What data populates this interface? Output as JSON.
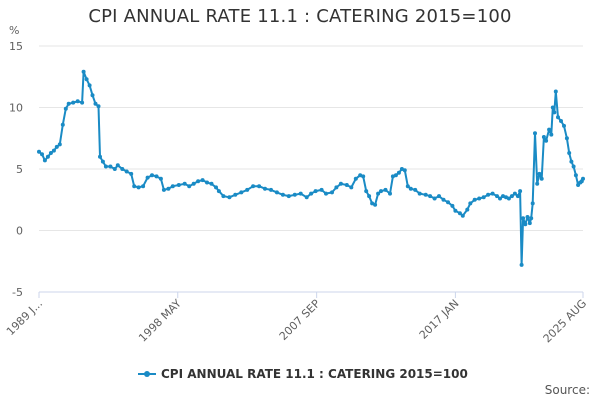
{
  "chart_data": {
    "type": "line",
    "title": "CPI ANNUAL RATE 11.1 : CATERING 2015=100",
    "ylabel": "%",
    "xlabel": "",
    "ylim": [
      -5,
      15
    ],
    "yticks": [
      -5,
      0,
      5,
      10,
      15
    ],
    "x_range": [
      1989.0,
      2025.58
    ],
    "xticks": [
      {
        "label": "1989 JAN",
        "display": "1989 J...",
        "x": 1989.0
      },
      {
        "label": "1998 MAY",
        "display": "1998 MAY",
        "x": 1998.33
      },
      {
        "label": "2007 SEP",
        "display": "2007 SEP",
        "x": 2007.67
      },
      {
        "label": "2017 JAN",
        "display": "2017 JAN",
        "x": 2017.0
      },
      {
        "label": "2025 AUG",
        "display": "2025 AUG",
        "x": 2025.58
      }
    ],
    "series": [
      {
        "name": "CPI ANNUAL RATE 11.1 : CATERING 2015=100",
        "color": "#1a8bc5",
        "points": [
          [
            1989.0,
            6.4
          ],
          [
            1989.2,
            6.2
          ],
          [
            1989.4,
            5.7
          ],
          [
            1989.6,
            6.0
          ],
          [
            1989.8,
            6.3
          ],
          [
            1990.0,
            6.5
          ],
          [
            1990.2,
            6.8
          ],
          [
            1990.4,
            7.0
          ],
          [
            1990.6,
            8.6
          ],
          [
            1990.8,
            9.9
          ],
          [
            1991.0,
            10.3
          ],
          [
            1991.3,
            10.4
          ],
          [
            1991.6,
            10.5
          ],
          [
            1991.9,
            10.4
          ],
          [
            1992.0,
            12.9
          ],
          [
            1992.2,
            12.3
          ],
          [
            1992.4,
            11.8
          ],
          [
            1992.6,
            11.0
          ],
          [
            1992.8,
            10.3
          ],
          [
            1993.0,
            10.1
          ],
          [
            1993.1,
            6.0
          ],
          [
            1993.3,
            5.6
          ],
          [
            1993.5,
            5.2
          ],
          [
            1993.8,
            5.2
          ],
          [
            1994.1,
            5.0
          ],
          [
            1994.3,
            5.3
          ],
          [
            1994.6,
            5.0
          ],
          [
            1994.9,
            4.8
          ],
          [
            1995.2,
            4.6
          ],
          [
            1995.4,
            3.6
          ],
          [
            1995.7,
            3.5
          ],
          [
            1996.0,
            3.6
          ],
          [
            1996.3,
            4.3
          ],
          [
            1996.6,
            4.5
          ],
          [
            1996.9,
            4.4
          ],
          [
            1997.2,
            4.2
          ],
          [
            1997.4,
            3.3
          ],
          [
            1997.7,
            3.4
          ],
          [
            1998.0,
            3.6
          ],
          [
            1998.4,
            3.7
          ],
          [
            1998.8,
            3.8
          ],
          [
            1999.1,
            3.6
          ],
          [
            1999.4,
            3.8
          ],
          [
            1999.7,
            4.0
          ],
          [
            2000.0,
            4.1
          ],
          [
            2000.3,
            3.9
          ],
          [
            2000.6,
            3.8
          ],
          [
            2000.9,
            3.5
          ],
          [
            2001.1,
            3.2
          ],
          [
            2001.4,
            2.8
          ],
          [
            2001.8,
            2.7
          ],
          [
            2002.2,
            2.9
          ],
          [
            2002.6,
            3.1
          ],
          [
            2003.0,
            3.3
          ],
          [
            2003.4,
            3.6
          ],
          [
            2003.8,
            3.6
          ],
          [
            2004.2,
            3.4
          ],
          [
            2004.6,
            3.3
          ],
          [
            2005.0,
            3.1
          ],
          [
            2005.4,
            2.9
          ],
          [
            2005.8,
            2.8
          ],
          [
            2006.2,
            2.9
          ],
          [
            2006.6,
            3.0
          ],
          [
            2007.0,
            2.7
          ],
          [
            2007.3,
            3.0
          ],
          [
            2007.6,
            3.2
          ],
          [
            2008.0,
            3.3
          ],
          [
            2008.3,
            3.0
          ],
          [
            2008.7,
            3.1
          ],
          [
            2009.0,
            3.5
          ],
          [
            2009.3,
            3.8
          ],
          [
            2009.7,
            3.7
          ],
          [
            2010.0,
            3.5
          ],
          [
            2010.3,
            4.2
          ],
          [
            2010.6,
            4.5
          ],
          [
            2010.8,
            4.4
          ],
          [
            2011.0,
            3.2
          ],
          [
            2011.2,
            2.8
          ],
          [
            2011.4,
            2.2
          ],
          [
            2011.6,
            2.1
          ],
          [
            2011.8,
            3.0
          ],
          [
            2012.0,
            3.2
          ],
          [
            2012.3,
            3.3
          ],
          [
            2012.6,
            3.0
          ],
          [
            2012.8,
            4.4
          ],
          [
            2013.0,
            4.5
          ],
          [
            2013.2,
            4.7
          ],
          [
            2013.4,
            5.0
          ],
          [
            2013.6,
            4.9
          ],
          [
            2013.8,
            3.6
          ],
          [
            2014.0,
            3.4
          ],
          [
            2014.3,
            3.3
          ],
          [
            2014.6,
            3.0
          ],
          [
            2015.0,
            2.9
          ],
          [
            2015.3,
            2.8
          ],
          [
            2015.6,
            2.6
          ],
          [
            2015.9,
            2.8
          ],
          [
            2016.2,
            2.5
          ],
          [
            2016.5,
            2.3
          ],
          [
            2016.8,
            2.0
          ],
          [
            2017.0,
            1.6
          ],
          [
            2017.3,
            1.4
          ],
          [
            2017.5,
            1.2
          ],
          [
            2017.8,
            1.7
          ],
          [
            2018.0,
            2.2
          ],
          [
            2018.3,
            2.5
          ],
          [
            2018.6,
            2.6
          ],
          [
            2018.9,
            2.7
          ],
          [
            2019.2,
            2.9
          ],
          [
            2019.5,
            3.0
          ],
          [
            2019.8,
            2.8
          ],
          [
            2020.0,
            2.6
          ],
          [
            2020.2,
            2.8
          ],
          [
            2020.4,
            2.7
          ],
          [
            2020.6,
            2.6
          ],
          [
            2020.8,
            2.8
          ],
          [
            2021.0,
            3.0
          ],
          [
            2021.2,
            2.8
          ],
          [
            2021.35,
            3.2
          ],
          [
            2021.45,
            -2.8
          ],
          [
            2021.55,
            1.0
          ],
          [
            2021.7,
            0.5
          ],
          [
            2021.85,
            1.1
          ],
          [
            2022.0,
            0.6
          ],
          [
            2022.1,
            1.0
          ],
          [
            2022.2,
            2.2
          ],
          [
            2022.35,
            7.9
          ],
          [
            2022.5,
            3.8
          ],
          [
            2022.65,
            4.6
          ],
          [
            2022.8,
            4.2
          ],
          [
            2022.95,
            7.6
          ],
          [
            2023.1,
            7.3
          ],
          [
            2023.3,
            8.2
          ],
          [
            2023.45,
            7.8
          ],
          [
            2023.55,
            10.0
          ],
          [
            2023.65,
            9.6
          ],
          [
            2023.75,
            11.3
          ],
          [
            2023.9,
            9.2
          ],
          [
            2024.1,
            8.9
          ],
          [
            2024.3,
            8.5
          ],
          [
            2024.5,
            7.5
          ],
          [
            2024.65,
            6.3
          ],
          [
            2024.8,
            5.6
          ],
          [
            2024.95,
            5.2
          ],
          [
            2025.1,
            4.5
          ],
          [
            2025.25,
            3.7
          ],
          [
            2025.4,
            3.9
          ],
          [
            2025.5,
            4.0
          ],
          [
            2025.58,
            4.2
          ]
        ]
      }
    ],
    "legend": "bottom-center",
    "source": "Source:"
  }
}
